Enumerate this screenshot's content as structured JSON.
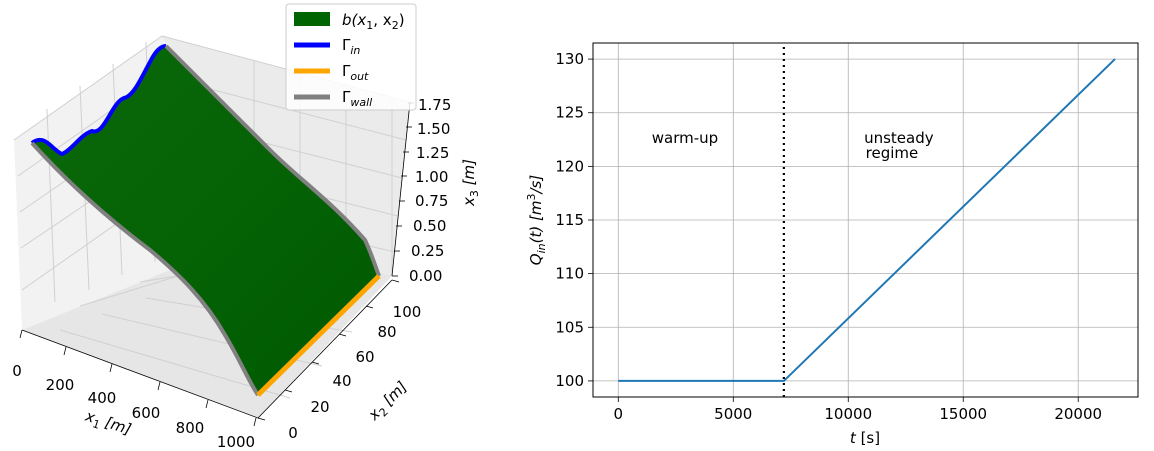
{
  "chart_data": [
    {
      "type": "surface3d",
      "xlabel": "x",
      "xlabel_sub": "1",
      "xlabel_unit": " [m]",
      "ylabel": "x",
      "ylabel_sub": "2",
      "ylabel_unit": " [m]",
      "zlabel": "x",
      "zlabel_sub": "3",
      "zlabel_unit": " [m]",
      "x_ticks": [
        "0",
        "200",
        "400",
        "600",
        "800",
        "1000"
      ],
      "y_ticks": [
        "0",
        "20",
        "40",
        "60",
        "80",
        "100"
      ],
      "z_ticks": [
        "0.00",
        "0.25",
        "0.50",
        "0.75",
        "1.00",
        "1.25",
        "1.50",
        "1.75"
      ],
      "xlim": [
        0,
        1000
      ],
      "ylim": [
        0,
        100
      ],
      "zlim": [
        0,
        1.75
      ],
      "legend": {
        "placement": "top-right",
        "entries": [
          {
            "label": "b(x",
            "sub1": "1",
            "mid": ", x",
            "sub2": "2",
            "end": ")",
            "color": "#006400"
          },
          {
            "label": "Γ",
            "sub": "in",
            "color": "#0000ff"
          },
          {
            "label": "Γ",
            "sub": "out",
            "color": "#ffa500"
          },
          {
            "label": "Γ",
            "sub": "wall",
            "color": "#808080"
          }
        ]
      },
      "colors": {
        "surface": "#006400",
        "inflow": "#0000ff",
        "outflow": "#ffa500",
        "wall": "#808080"
      }
    },
    {
      "type": "line",
      "xlabel": "t",
      "xlabel_unit": " [s]",
      "ylabel_main": "Q",
      "ylabel_sub": "in",
      "ylabel_rest": "(t) [m",
      "ylabel_sup": "3",
      "ylabel_end": "/s]",
      "xlim": [
        -1100,
        22600
      ],
      "ylim": [
        98.5,
        131.5
      ],
      "x_ticks": [
        0,
        5000,
        10000,
        15000,
        20000
      ],
      "y_ticks": [
        100,
        105,
        110,
        115,
        120,
        125,
        130
      ],
      "grid": true,
      "series": [
        {
          "x": [
            0,
            7200,
            21600
          ],
          "values": [
            100,
            100,
            130
          ],
          "color": "#1f77b4"
        }
      ],
      "vline": {
        "x": 7200,
        "style": "dotted",
        "color": "#000000"
      },
      "annotations": [
        {
          "text": "warm-up",
          "x": 2900,
          "y": 122.2
        },
        {
          "text": "unsteady",
          "x": 12200,
          "y": 122.2
        },
        {
          "text": "regime",
          "x": 11900,
          "y": 120.8
        }
      ]
    }
  ]
}
